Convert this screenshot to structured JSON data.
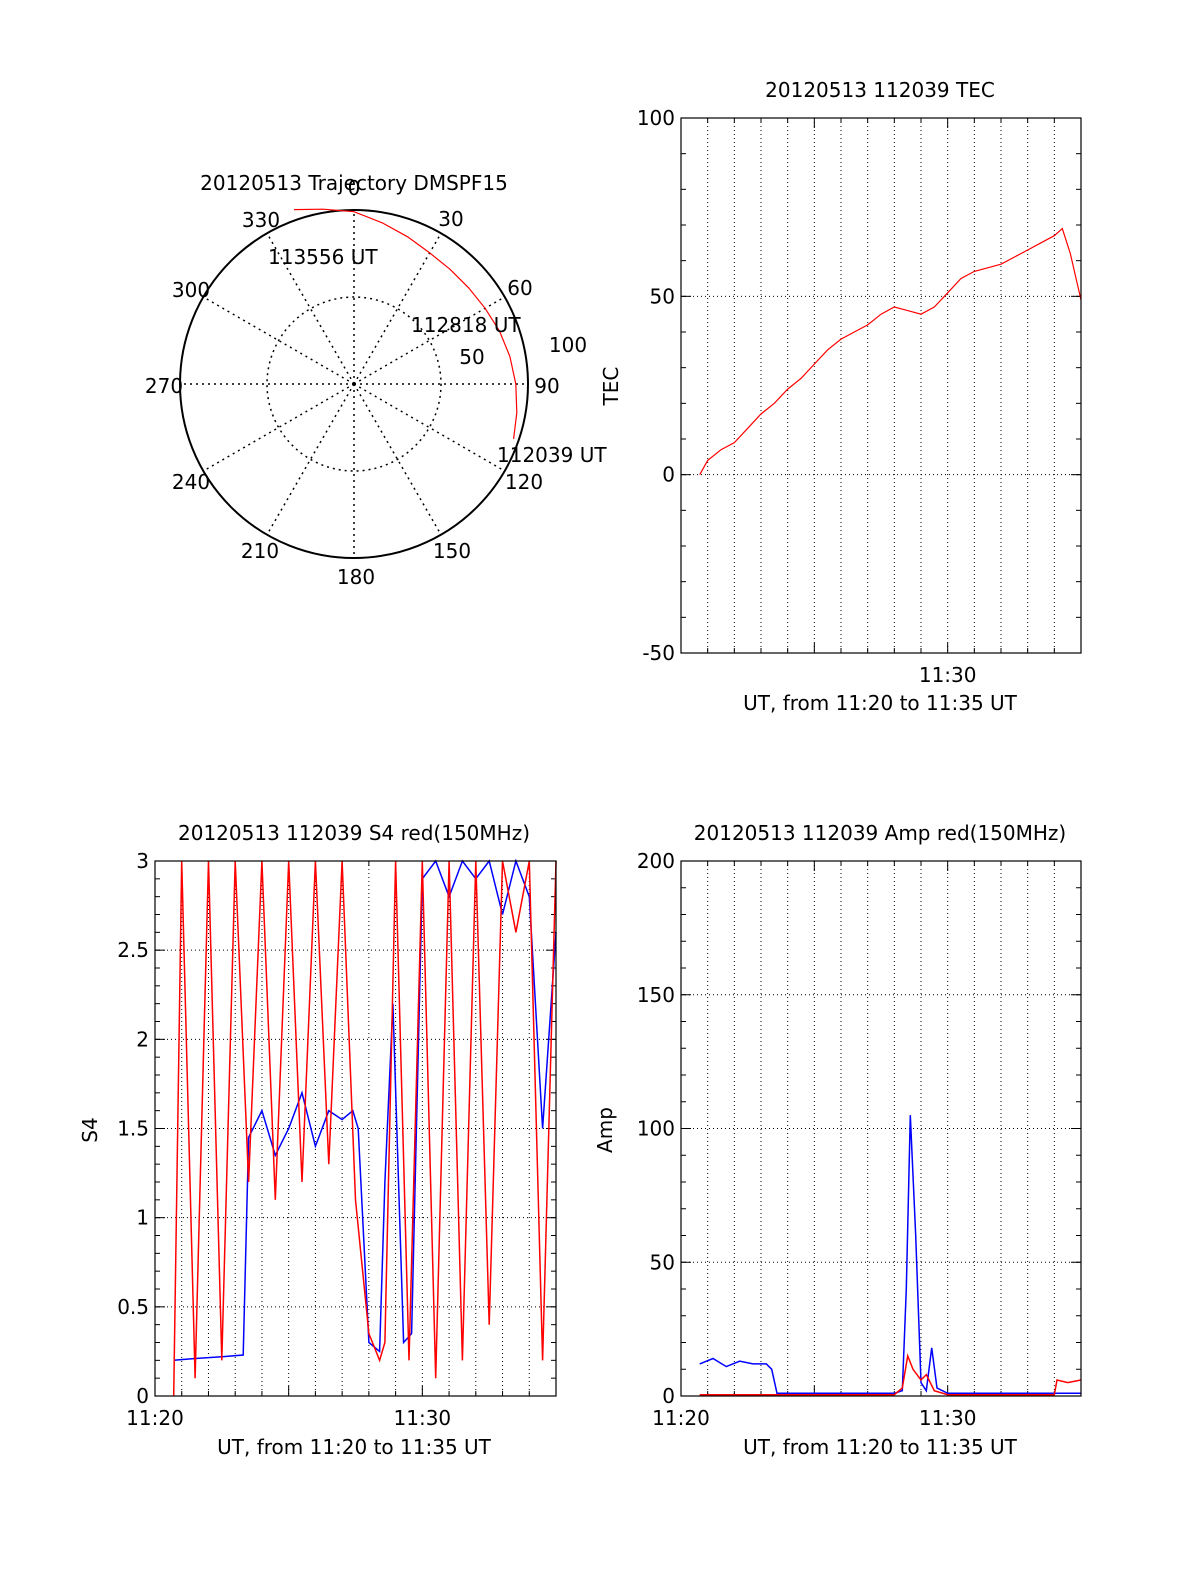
{
  "colors": {
    "red": "#ff0000",
    "blue": "#0000ff",
    "axis": "#000000",
    "grid": "#000000"
  },
  "chart_data": [
    {
      "type": "polar",
      "title": "20120513 Trajectory DMSPF15",
      "angle_labels": [
        "0",
        "30",
        "60",
        "90",
        "120",
        "150",
        "180",
        "210",
        "240",
        "270",
        "300",
        "330"
      ],
      "radial_labels": [
        "50",
        "100"
      ],
      "radial_max": 100,
      "grid": true,
      "trajectory": {
        "description_points": [
          {
            "azimuth": 109,
            "elevation_ring": 97
          },
          {
            "azimuth": 100,
            "elevation_ring": 95
          },
          {
            "azimuth": 90,
            "elevation_ring": 93
          },
          {
            "azimuth": 80,
            "elevation_ring": 91
          },
          {
            "azimuth": 70,
            "elevation_ring": 89
          },
          {
            "azimuth": 60,
            "elevation_ring": 87
          },
          {
            "azimuth": 50,
            "elevation_ring": 86
          },
          {
            "azimuth": 40,
            "elevation_ring": 86
          },
          {
            "azimuth": 30,
            "elevation_ring": 87
          },
          {
            "azimuth": 20,
            "elevation_ring": 90
          },
          {
            "azimuth": 10,
            "elevation_ring": 94
          },
          {
            "azimuth": 0,
            "elevation_ring": 99
          },
          {
            "azimuth": -10,
            "elevation_ring": 102
          },
          {
            "azimuth": -19,
            "elevation_ring": 106
          }
        ]
      },
      "annotations": [
        "113556 UT",
        "112818 UT",
        "112039 UT"
      ]
    },
    {
      "type": "line",
      "title": "20120513 112039 TEC",
      "xlabel": "UT, from 11:20 to 11:35 UT",
      "ylabel": "TEC",
      "xlim": [
        0,
        15
      ],
      "ylim": [
        -50,
        100
      ],
      "x_ticks": [
        {
          "value": 10,
          "label": "11:30"
        }
      ],
      "y_ticks": [
        {
          "value": -50,
          "label": "-50"
        },
        {
          "value": 0,
          "label": "0"
        },
        {
          "value": 50,
          "label": "50"
        },
        {
          "value": 100,
          "label": "100"
        }
      ],
      "grid": true,
      "series": [
        {
          "color": "red",
          "x": [
            0.7,
            1.0,
            1.5,
            2.0,
            2.5,
            3.0,
            3.5,
            4.0,
            4.5,
            5.0,
            5.5,
            6.0,
            6.5,
            7.0,
            7.5,
            8.0,
            8.5,
            9.0,
            9.5,
            10.0,
            10.5,
            11.0,
            11.5,
            12.0,
            12.5,
            13.0,
            13.5,
            14.0,
            14.3,
            14.6,
            15.0
          ],
          "y": [
            0,
            4,
            7,
            9,
            13,
            17,
            20,
            24,
            27,
            31,
            35,
            38,
            40,
            42,
            45,
            47,
            46,
            45,
            47,
            51,
            55,
            57,
            58,
            59,
            61,
            63,
            65,
            67,
            69,
            62,
            49
          ]
        }
      ]
    },
    {
      "type": "line",
      "title": "20120513 112039 S4 red(150MHz)",
      "xlabel": "UT, from 11:20 to 11:35 UT",
      "ylabel": "S4",
      "xlim": [
        0,
        15
      ],
      "ylim": [
        0,
        3
      ],
      "x_ticks": [
        {
          "value": 0,
          "label": "11:20"
        },
        {
          "value": 10,
          "label": "11:30"
        }
      ],
      "y_ticks": [
        {
          "value": 0,
          "label": "0"
        },
        {
          "value": 0.5,
          "label": "0.5"
        },
        {
          "value": 1,
          "label": "1"
        },
        {
          "value": 1.5,
          "label": "1.5"
        },
        {
          "value": 2,
          "label": "2"
        },
        {
          "value": 2.5,
          "label": "2.5"
        },
        {
          "value": 3,
          "label": "3"
        }
      ],
      "grid": true,
      "series": [
        {
          "color": "blue",
          "x": [
            0.7,
            1.5,
            2.5,
            3.3,
            3.5,
            4.0,
            4.5,
            5.0,
            5.5,
            6.0,
            6.5,
            7.0,
            7.4,
            7.6,
            8.0,
            8.4,
            8.6,
            8.9,
            9.3,
            9.6,
            10.0,
            10.5,
            11.0,
            11.5,
            12.0,
            12.5,
            13.0,
            13.5,
            14.0,
            14.5,
            15.0
          ],
          "y": [
            0.2,
            0.21,
            0.22,
            0.23,
            1.45,
            1.6,
            1.35,
            1.5,
            1.7,
            1.4,
            1.6,
            1.55,
            1.6,
            1.5,
            0.3,
            0.25,
            1.2,
            2.2,
            0.3,
            0.35,
            2.9,
            3.0,
            2.8,
            3.0,
            2.9,
            3.0,
            2.7,
            3.0,
            2.8,
            1.5,
            2.6
          ]
        },
        {
          "color": "red",
          "x": [
            0.7,
            1.0,
            1.5,
            2.0,
            2.5,
            3.0,
            3.5,
            4.0,
            4.5,
            5.0,
            5.5,
            6.0,
            6.5,
            7.0,
            7.5,
            8.0,
            8.4,
            8.6,
            9.0,
            9.5,
            10.0,
            10.5,
            11.0,
            11.5,
            12.0,
            12.5,
            13.0,
            13.5,
            14.0,
            14.5,
            15.0
          ],
          "y": [
            0.0,
            3.0,
            0.1,
            3.0,
            0.2,
            3.0,
            1.2,
            3.0,
            1.1,
            3.0,
            1.2,
            3.0,
            1.3,
            3.0,
            1.1,
            0.35,
            0.2,
            0.3,
            3.0,
            0.2,
            3.0,
            0.1,
            3.0,
            0.2,
            3.0,
            0.4,
            3.0,
            2.6,
            3.0,
            0.2,
            3.0
          ]
        }
      ]
    },
    {
      "type": "line",
      "title": "20120513 112039 Amp red(150MHz)",
      "xlabel": "UT, from 11:20 to 11:35 UT",
      "ylabel": "Amp",
      "xlim": [
        0,
        15
      ],
      "ylim": [
        0,
        200
      ],
      "x_ticks": [
        {
          "value": 0,
          "label": "11:20"
        },
        {
          "value": 10,
          "label": "11:30"
        }
      ],
      "y_ticks": [
        {
          "value": 0,
          "label": "0"
        },
        {
          "value": 50,
          "label": "50"
        },
        {
          "value": 100,
          "label": "100"
        },
        {
          "value": 150,
          "label": "150"
        },
        {
          "value": 200,
          "label": "200"
        }
      ],
      "grid": true,
      "series": [
        {
          "color": "blue",
          "x": [
            0.7,
            1.2,
            1.7,
            2.2,
            2.7,
            3.2,
            3.4,
            3.6,
            5,
            6,
            7,
            8.0,
            8.3,
            8.45,
            8.6,
            8.8,
            9.0,
            9.2,
            9.4,
            9.6,
            10,
            11,
            12,
            13,
            14,
            15
          ],
          "y": [
            12,
            14,
            11,
            13,
            12,
            12,
            10,
            1,
            1,
            1,
            1,
            1,
            2,
            40,
            105,
            60,
            5,
            2,
            18,
            3,
            1,
            1,
            1,
            1,
            1,
            1
          ]
        },
        {
          "color": "red",
          "x": [
            0.7,
            3.4,
            8.0,
            8.3,
            8.5,
            8.7,
            9.0,
            9.2,
            9.5,
            10,
            12,
            14.0,
            14.1,
            14.5,
            15.0
          ],
          "y": [
            0.5,
            0.5,
            0.5,
            3,
            15,
            10,
            6,
            8,
            2,
            0.5,
            0.5,
            0.5,
            6,
            5,
            6
          ]
        }
      ]
    }
  ]
}
